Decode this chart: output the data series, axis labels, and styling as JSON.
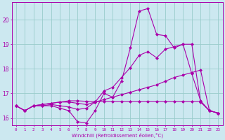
{
  "xlabel": "Windchill (Refroidissement éolien,°C)",
  "x_ticks": [
    0,
    1,
    2,
    3,
    4,
    5,
    6,
    7,
    8,
    9,
    10,
    11,
    12,
    13,
    14,
    15,
    16,
    17,
    18,
    19,
    20,
    21,
    22,
    23
  ],
  "ylim": [
    15.7,
    20.7
  ],
  "xlim": [
    -0.5,
    23.5
  ],
  "yticks": [
    16,
    17,
    18,
    19,
    20
  ],
  "bg_color": "#cce8f0",
  "line_color": "#aa00aa",
  "grid_color": "#99cccc",
  "lines": [
    [
      16.5,
      16.3,
      16.5,
      16.5,
      16.5,
      16.4,
      16.3,
      15.85,
      15.8,
      16.3,
      17.0,
      16.85,
      17.5,
      18.85,
      20.35,
      20.45,
      19.4,
      19.35,
      18.85,
      19.0,
      17.8,
      16.7,
      16.3,
      16.2
    ],
    [
      16.5,
      16.3,
      16.5,
      16.5,
      16.55,
      16.5,
      16.45,
      16.35,
      16.4,
      16.65,
      17.1,
      17.25,
      17.65,
      18.05,
      18.55,
      18.7,
      18.45,
      18.8,
      18.9,
      19.0,
      19.0,
      16.65,
      16.3,
      16.2
    ],
    [
      16.5,
      16.3,
      16.5,
      16.55,
      16.6,
      16.65,
      16.65,
      16.6,
      16.55,
      16.65,
      16.75,
      16.85,
      16.95,
      17.05,
      17.15,
      17.25,
      17.35,
      17.5,
      17.65,
      17.75,
      17.85,
      17.95,
      16.3,
      16.2
    ],
    [
      16.5,
      16.3,
      16.5,
      16.55,
      16.6,
      16.65,
      16.7,
      16.7,
      16.68,
      16.67,
      16.67,
      16.67,
      16.67,
      16.67,
      16.67,
      16.67,
      16.67,
      16.67,
      16.67,
      16.67,
      16.67,
      16.67,
      16.3,
      16.2
    ]
  ]
}
